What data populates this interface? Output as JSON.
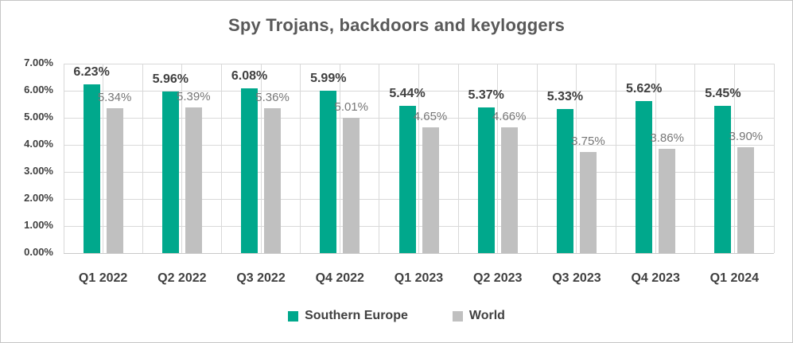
{
  "chart_data": {
    "type": "bar",
    "title": "Spy Trojans, backdoors and keyloggers",
    "categories": [
      "Q1 2022",
      "Q2 2022",
      "Q3 2022",
      "Q4 2022",
      "Q1 2023",
      "Q2 2023",
      "Q3 2023",
      "Q4 2023",
      "Q1 2024"
    ],
    "series": [
      {
        "name": "Southern Europe",
        "color": "#00A88C",
        "values": [
          6.23,
          5.96,
          6.08,
          5.99,
          5.44,
          5.37,
          5.33,
          5.62,
          5.45
        ],
        "data_labels": [
          "6.23%",
          "5.96%",
          "6.08%",
          "5.99%",
          "5.44%",
          "5.37%",
          "5.33%",
          "5.62%",
          "5.45%"
        ]
      },
      {
        "name": "World",
        "color": "#C0C0C0",
        "values": [
          5.34,
          5.39,
          5.36,
          5.01,
          4.65,
          4.66,
          3.75,
          3.86,
          3.9
        ],
        "data_labels": [
          "5.34%",
          "5.39%",
          "5.36%",
          "5.01%",
          "4.65%",
          "4.66%",
          "3.75%",
          "3.86%",
          "3.90%"
        ]
      }
    ],
    "y_axis": {
      "min": 0,
      "max": 7,
      "step": 1,
      "tick_labels": [
        "0.00%",
        "1.00%",
        "2.00%",
        "3.00%",
        "4.00%",
        "5.00%",
        "6.00%",
        "7.00%"
      ]
    },
    "xlabel": "",
    "ylabel": "",
    "legend_position": "bottom",
    "grid": {
      "horizontal": true,
      "vertical": true
    }
  },
  "colors": {
    "series_southern_europe": "#00A88C",
    "series_world": "#C0C0C0",
    "gridline": "#D9D9D9",
    "title_text": "#595959",
    "axis_text": "#404040",
    "world_label_text": "#767676",
    "chart_border": "#C6C6C6"
  }
}
